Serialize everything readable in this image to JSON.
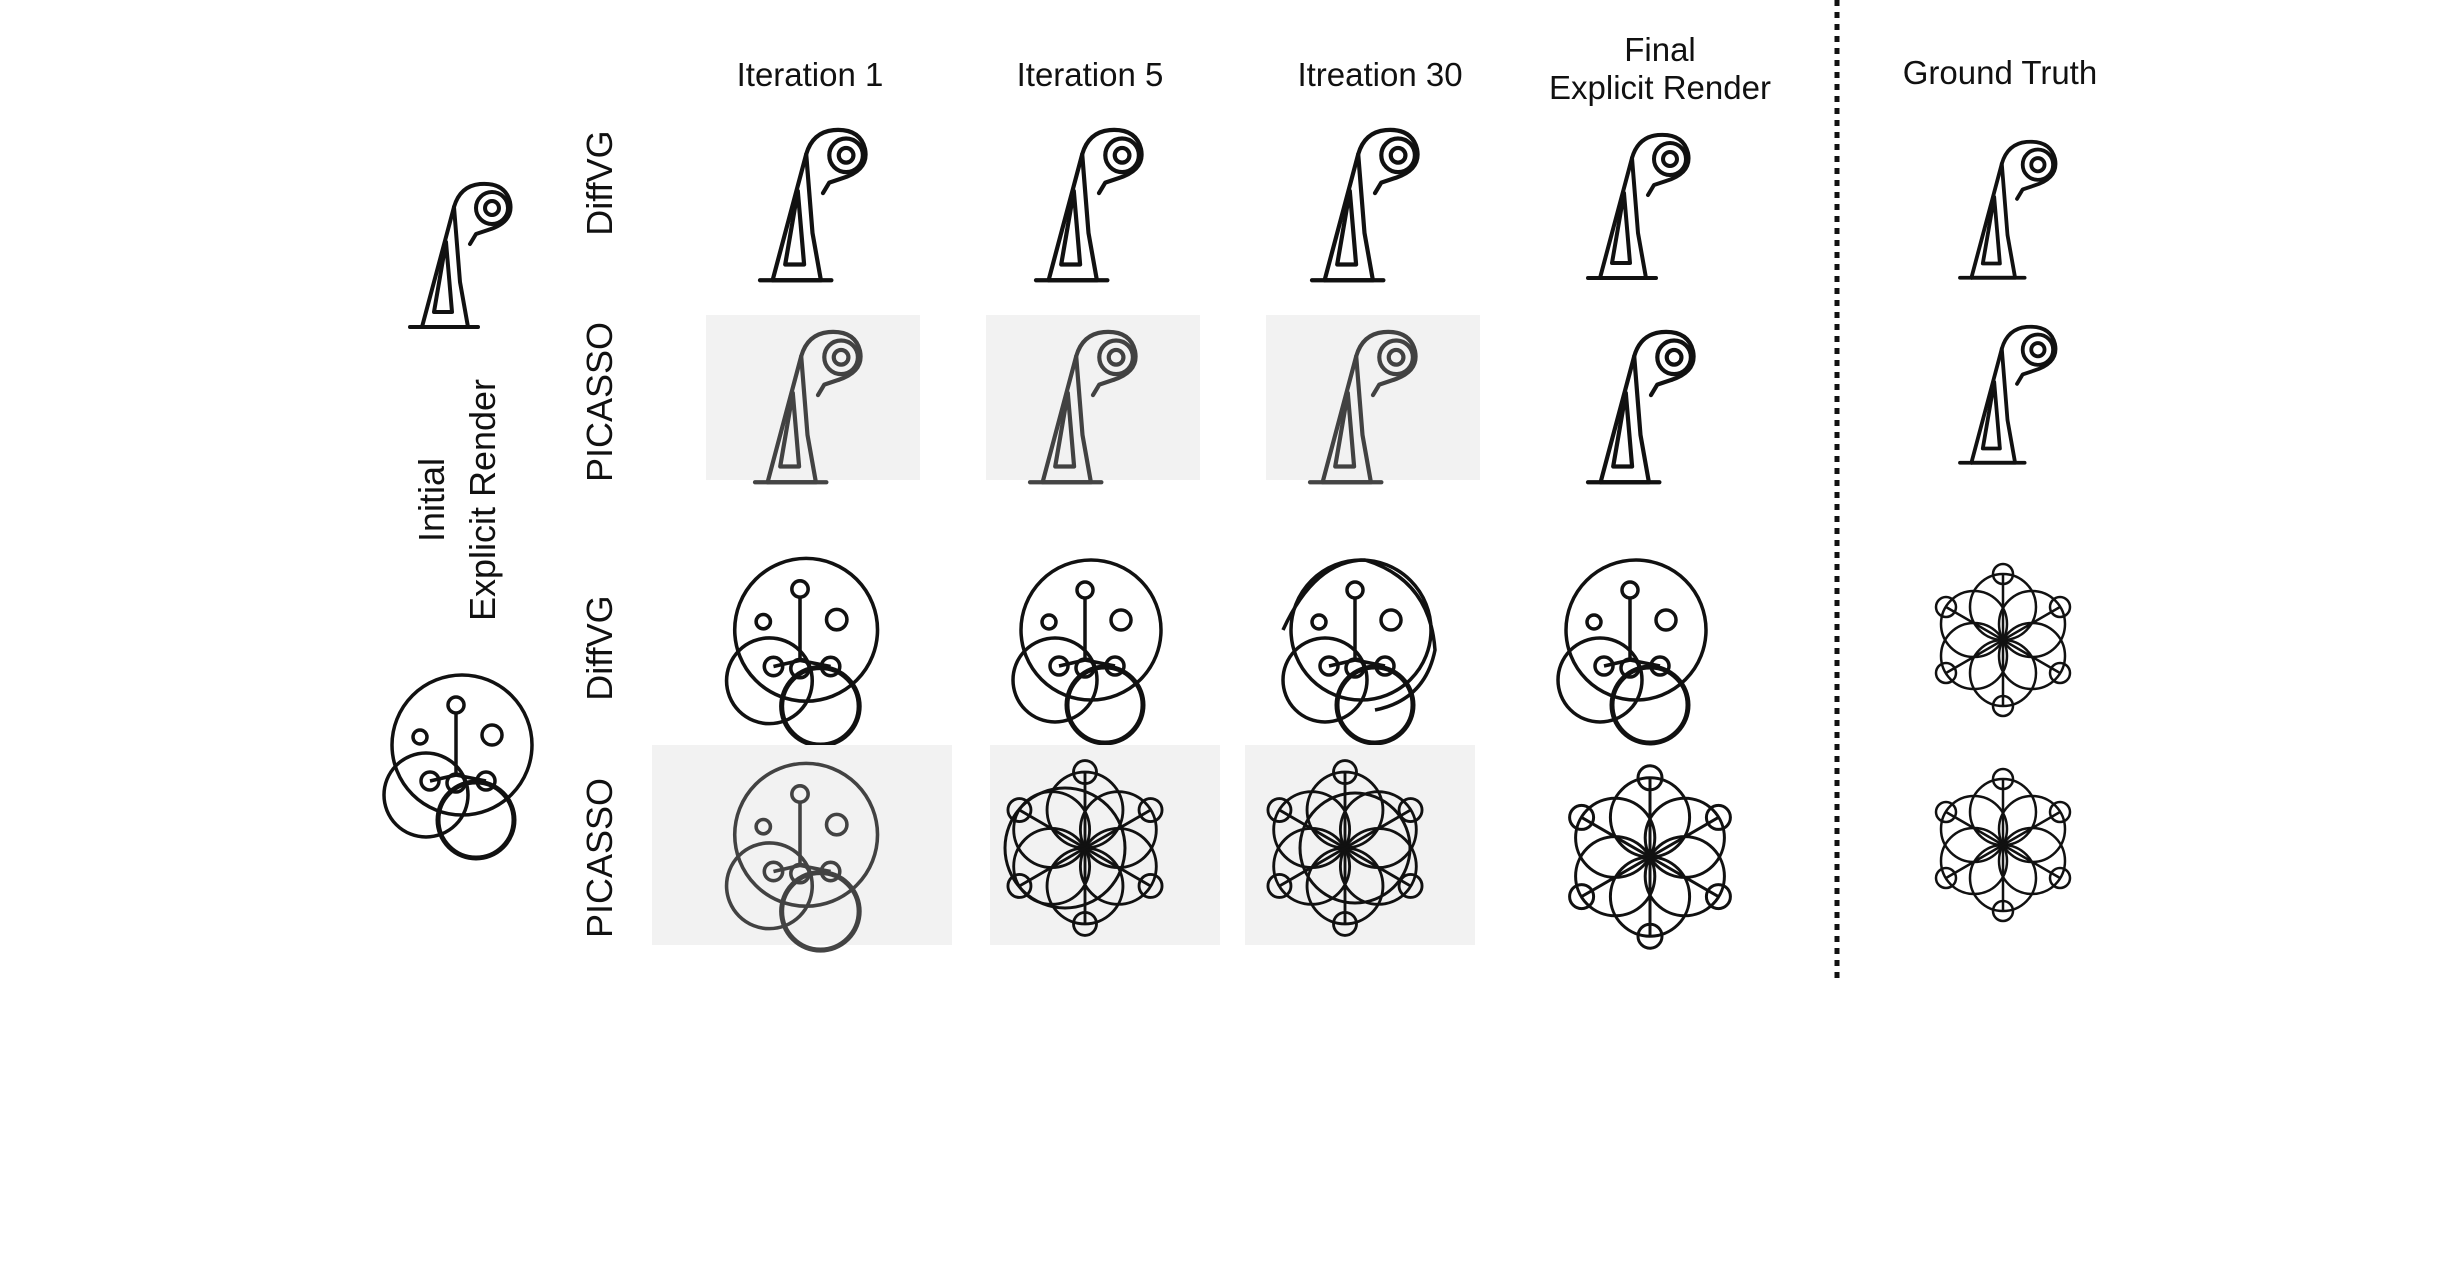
{
  "columns": {
    "iter1": "Iteration 1",
    "iter5": "Iteration 5",
    "iter30": "Itreation 30",
    "final_line1": "Final",
    "final_line2": "Explicit Render",
    "ground_truth": "Ground Truth"
  },
  "rows": {
    "diffvg": "DiffVG",
    "picasso": "PICASSO"
  },
  "side_label": {
    "line1": "Initial",
    "line2": "Explicit Render"
  }
}
